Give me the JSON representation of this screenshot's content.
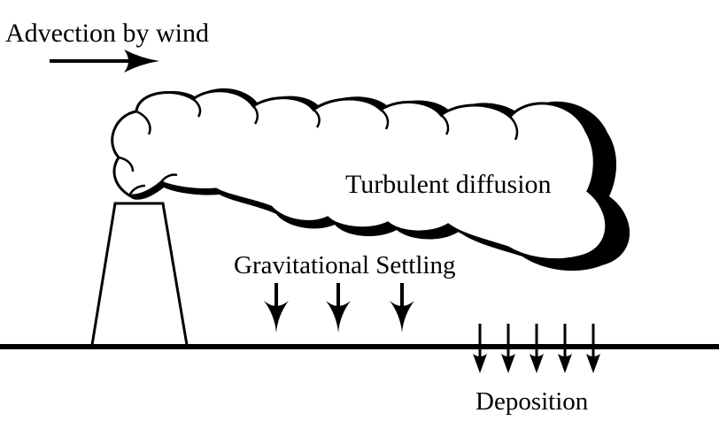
{
  "labels": {
    "advection": "Advection by wind",
    "turbulent": "Turbulent diffusion",
    "settling": "Gravitational Settling",
    "deposition": "Deposition"
  },
  "colors": {
    "ink": "#000000",
    "background": "#ffffff"
  }
}
